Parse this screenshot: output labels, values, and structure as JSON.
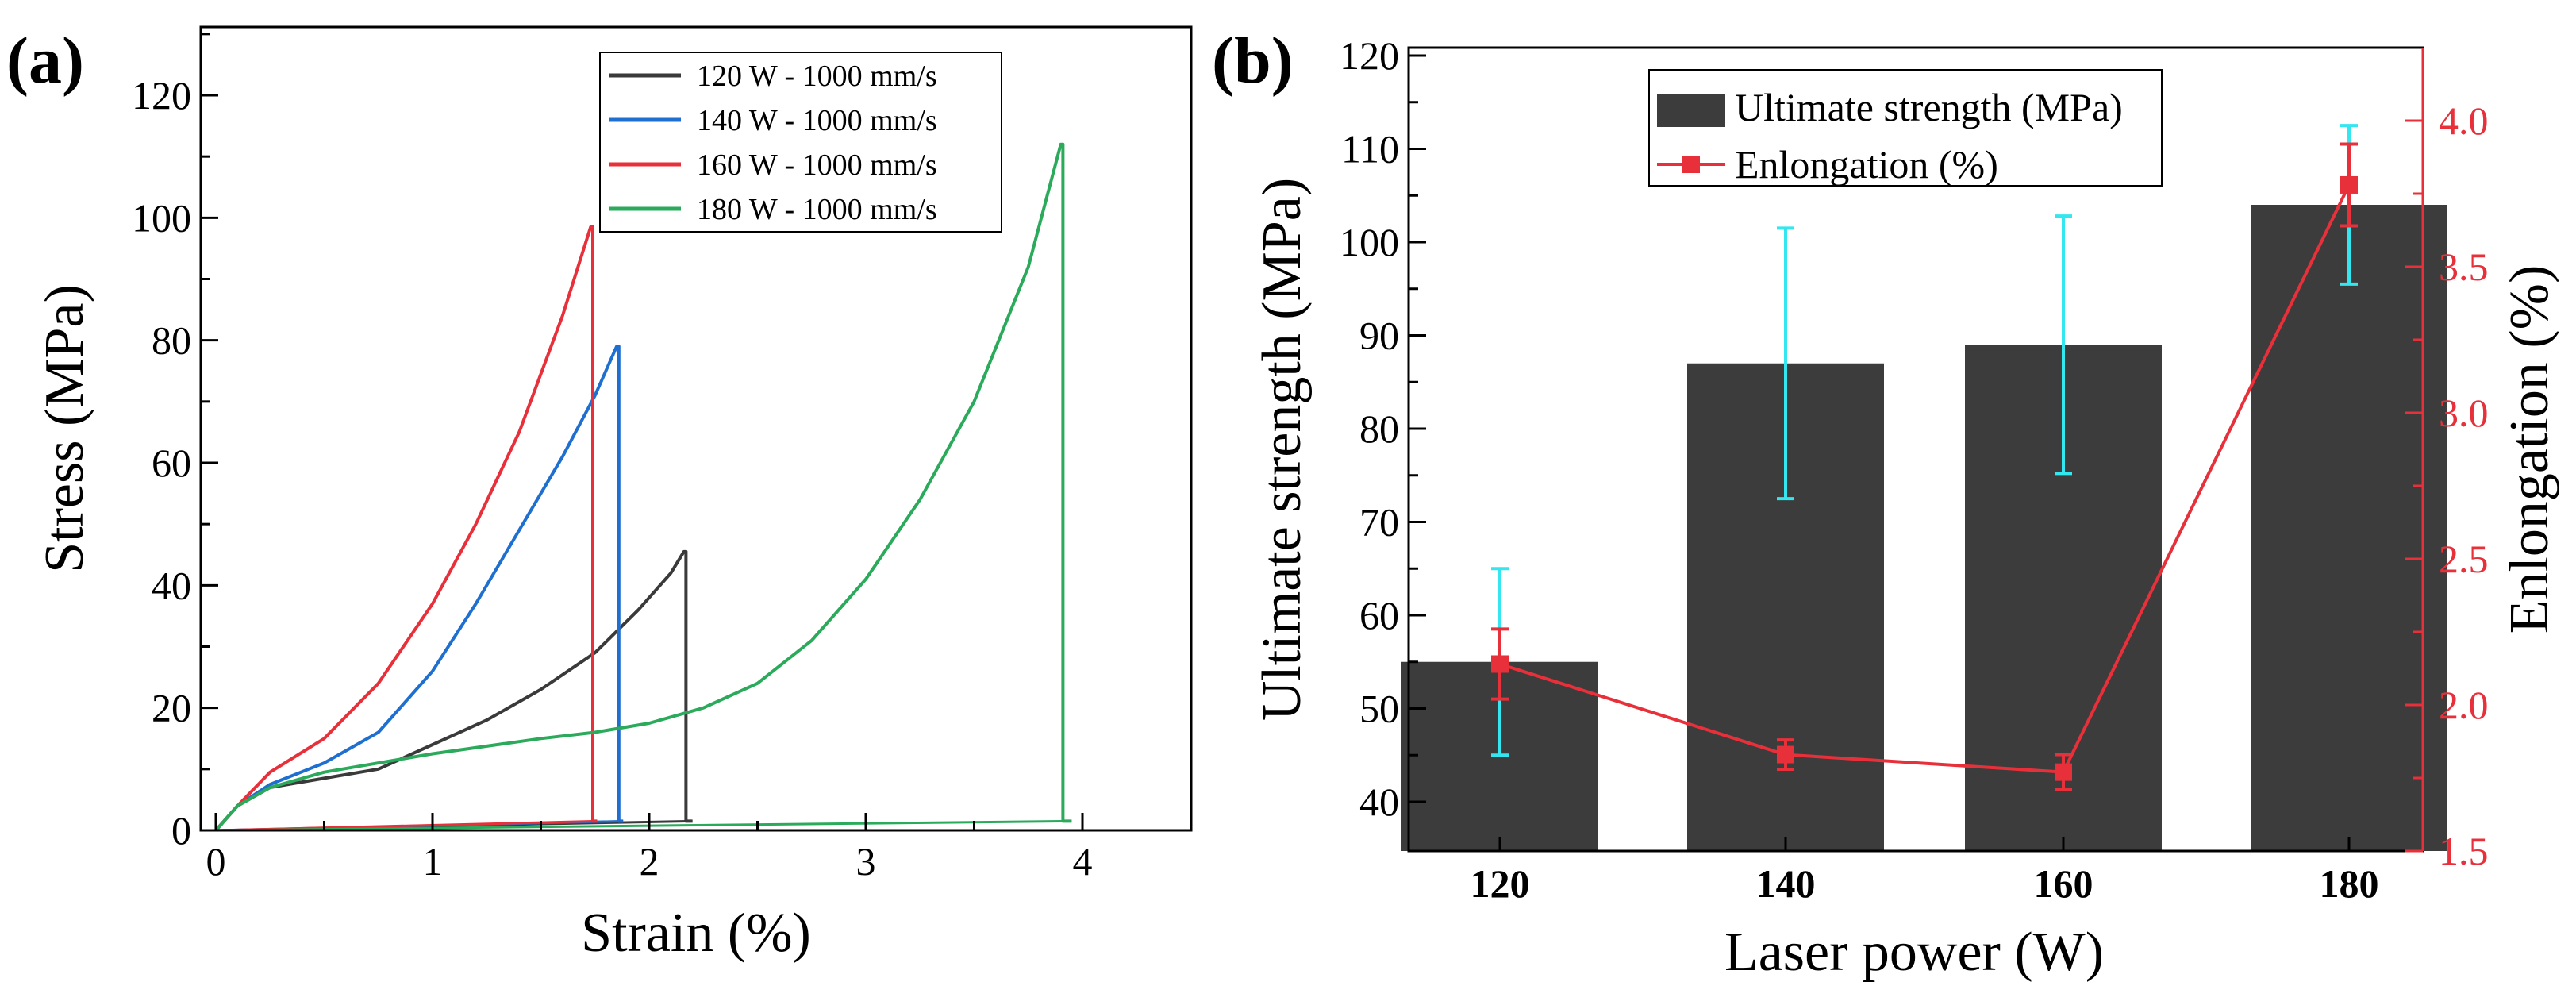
{
  "panel_a_label": "(a)",
  "panel_b_label": "(b)",
  "chart_data": [
    {
      "type": "line",
      "panel": "(a)",
      "title": "",
      "xlabel": "Strain (%)",
      "ylabel": "Stress (MPa)",
      "xlim": [
        0,
        4.5
      ],
      "ylim": [
        0,
        130
      ],
      "xticks": [
        0,
        1,
        2,
        3,
        4
      ],
      "yticks": [
        0,
        20,
        40,
        60,
        80,
        100,
        120
      ],
      "grid": false,
      "legend_position": "top-right",
      "series": [
        {
          "name": "120 W - 1000 mm/s",
          "color": "#3a3a3a",
          "x": [
            0,
            0.1,
            0.25,
            0.5,
            0.75,
            1.0,
            1.25,
            1.5,
            1.75,
            1.95,
            2.1,
            2.16
          ],
          "y": [
            0,
            4,
            7,
            8.5,
            10,
            14,
            18,
            23,
            29,
            36,
            42,
            45.5
          ],
          "break_x": 2.17,
          "tail_x": [
            2.17,
            2.2
          ]
        },
        {
          "name": "140 W - 1000 mm/s",
          "color": "#1f6fd0",
          "x": [
            0,
            0.1,
            0.25,
            0.5,
            0.75,
            1.0,
            1.2,
            1.4,
            1.6,
            1.75,
            1.85
          ],
          "y": [
            0,
            4,
            7.5,
            11,
            16,
            26,
            37,
            49,
            61,
            71,
            79
          ],
          "break_x": 1.86,
          "tail_x": [
            1.86,
            1.88
          ]
        },
        {
          "name": "160 W - 1000 mm/s",
          "color": "#e8303a",
          "x": [
            0,
            0.1,
            0.25,
            0.5,
            0.75,
            1.0,
            1.2,
            1.4,
            1.6,
            1.73
          ],
          "y": [
            0,
            4,
            9.5,
            15,
            24,
            37,
            50,
            65,
            84,
            98.5
          ],
          "break_x": 1.74,
          "tail_x": [
            1.74,
            1.76
          ]
        },
        {
          "name": "180 W - 1000 mm/s",
          "color": "#2aaa5a",
          "x": [
            0,
            0.1,
            0.25,
            0.5,
            1.0,
            1.5,
            1.75,
            2.0,
            2.25,
            2.5,
            2.75,
            3.0,
            3.25,
            3.5,
            3.75,
            3.9
          ],
          "y": [
            0,
            4,
            7,
            9.5,
            12.5,
            15,
            16,
            17.5,
            20,
            24,
            31,
            41,
            54,
            70,
            92,
            112
          ],
          "break_x": 3.91,
          "tail_x": [
            3.91,
            3.95
          ]
        }
      ]
    },
    {
      "type": "bar",
      "panel": "(b)",
      "title": "",
      "xlabel": "Laser power (W)",
      "ylabel": "Ultimate strength (MPa)",
      "y2label": "Enlongation (%)",
      "categories": [
        "120",
        "140",
        "160",
        "180"
      ],
      "ylim": [
        35,
        120
      ],
      "y2lim": [
        1.5,
        4.3
      ],
      "yticks": [
        40,
        50,
        60,
        70,
        80,
        90,
        100,
        110,
        120
      ],
      "y2ticks": [
        "1.5",
        "2.0",
        "2.5",
        "3.0",
        "3.5",
        "4.0"
      ],
      "grid": false,
      "legend_position": "top-center",
      "series": [
        {
          "name": "Ultimate strength (MPa)",
          "kind": "bar",
          "axis": "left",
          "color": "#3c3c3c",
          "values": [
            55,
            87,
            89,
            104
          ],
          "errors": [
            10,
            14.5,
            13.8,
            8.5
          ],
          "error_color": "#33e6f0"
        },
        {
          "name": "Enlongation (%)",
          "kind": "line",
          "axis": "right",
          "color": "#e8303a",
          "values": [
            2.14,
            1.83,
            1.77,
            3.78
          ],
          "errors": [
            0.12,
            0.05,
            0.06,
            0.14
          ]
        }
      ]
    }
  ]
}
